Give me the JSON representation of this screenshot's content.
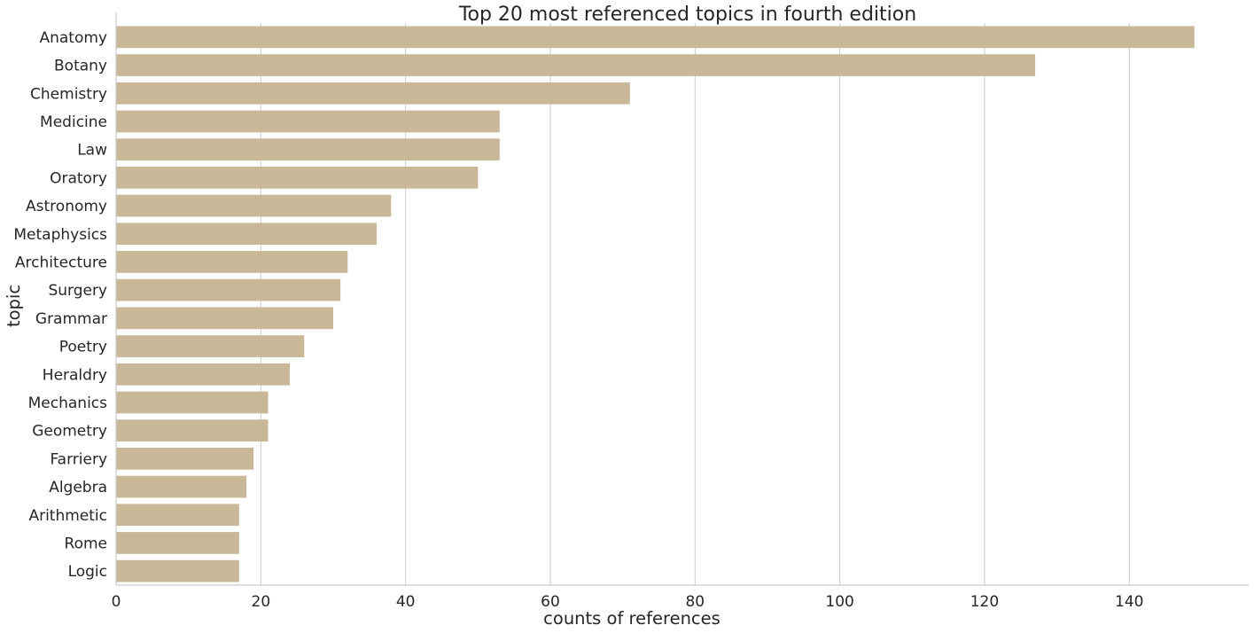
{
  "chart_data": {
    "type": "bar",
    "orientation": "horizontal",
    "title": "Top 20 most referenced topics in fourth edition",
    "xlabel": "counts of references",
    "ylabel": "topic",
    "categories": [
      "Anatomy",
      "Botany",
      "Chemistry",
      "Medicine",
      "Law",
      "Oratory",
      "Astronomy",
      "Metaphysics",
      "Architecture",
      "Surgery",
      "Grammar",
      "Poetry",
      "Heraldry",
      "Mechanics",
      "Geometry",
      "Farriery",
      "Algebra",
      "Arithmetic",
      "Rome",
      "Logic"
    ],
    "values": [
      149,
      127,
      71,
      53,
      53,
      50,
      38,
      36,
      32,
      31,
      30,
      26,
      24,
      21,
      21,
      19,
      18,
      17,
      17,
      17
    ],
    "xlim": [
      0,
      156.5
    ],
    "xticks": [
      0,
      20,
      40,
      60,
      80,
      100,
      120,
      140
    ],
    "grid": "vertical",
    "bar_color": "#c9b898",
    "grid_color": "#cccccc",
    "spine_color": "#cccccc",
    "text_color": "#262626"
  }
}
